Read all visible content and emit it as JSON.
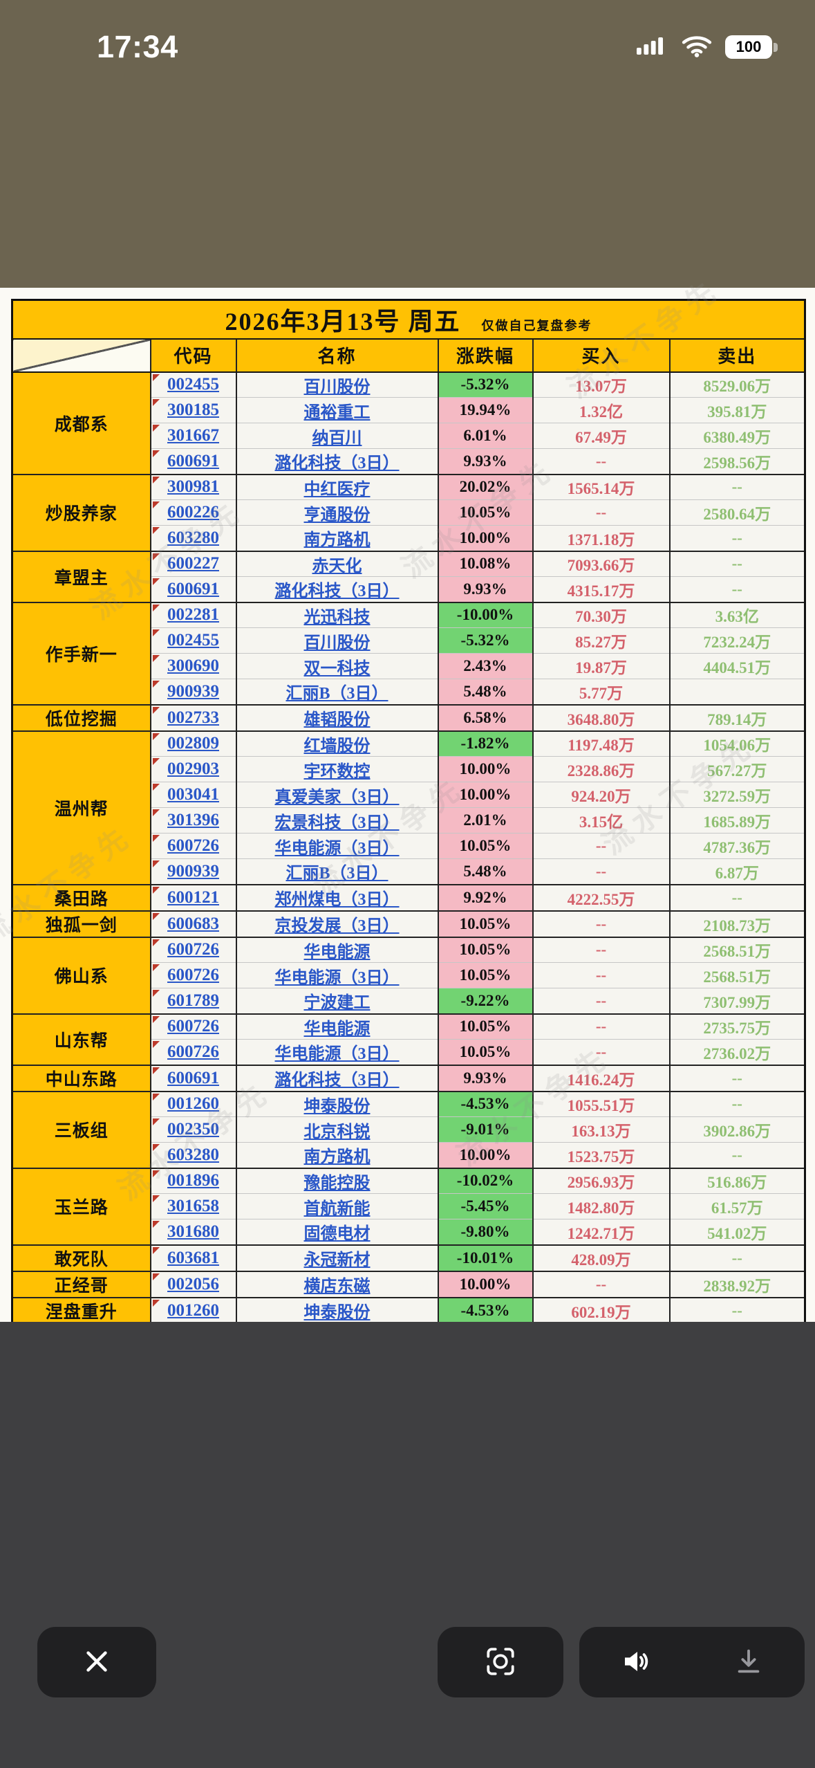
{
  "status_bar": {
    "time": "17:34",
    "battery": "100"
  },
  "watermark": {
    "text": "流水不争先"
  },
  "table": {
    "title": "2026年3月13号 周五",
    "subtitle": "仅做自己复盘参考",
    "headers": {
      "code": "代码",
      "name": "名称",
      "change": "涨跌幅",
      "buy": "买入",
      "sell": "卖出"
    },
    "groups": [
      {
        "name": "成都系",
        "rows": [
          {
            "code": "002455",
            "stock": "百川股份",
            "change": "-5.32%",
            "buy": "13.07万",
            "sell": "8529.06万"
          },
          {
            "code": "300185",
            "stock": "通裕重工",
            "change": "19.94%",
            "buy": "1.32亿",
            "sell": "395.81万"
          },
          {
            "code": "301667",
            "stock": "纳百川",
            "change": "6.01%",
            "buy": "67.49万",
            "sell": "6380.49万"
          },
          {
            "code": "600691",
            "stock": "潞化科技（3日）",
            "change": "9.93%",
            "buy": "--",
            "sell": "2598.56万"
          }
        ]
      },
      {
        "name": "炒股养家",
        "rows": [
          {
            "code": "300981",
            "stock": "中红医疗",
            "change": "20.02%",
            "buy": "1565.14万",
            "sell": "--"
          },
          {
            "code": "600226",
            "stock": "亨通股份",
            "change": "10.05%",
            "buy": "--",
            "sell": "2580.64万"
          },
          {
            "code": "603280",
            "stock": "南方路机",
            "change": "10.00%",
            "buy": "1371.18万",
            "sell": "--"
          }
        ]
      },
      {
        "name": "章盟主",
        "rows": [
          {
            "code": "600227",
            "stock": "赤天化",
            "change": "10.08%",
            "buy": "7093.66万",
            "sell": "--"
          },
          {
            "code": "600691",
            "stock": "潞化科技（3日）",
            "change": "9.93%",
            "buy": "4315.17万",
            "sell": "--"
          }
        ]
      },
      {
        "name": "作手新一",
        "rows": [
          {
            "code": "002281",
            "stock": "光迅科技",
            "change": "-10.00%",
            "buy": "70.30万",
            "sell": "3.63亿"
          },
          {
            "code": "002455",
            "stock": "百川股份",
            "change": "-5.32%",
            "buy": "85.27万",
            "sell": "7232.24万"
          },
          {
            "code": "300690",
            "stock": "双一科技",
            "change": "2.43%",
            "buy": "19.87万",
            "sell": "4404.51万"
          },
          {
            "code": "900939",
            "stock": "汇丽B（3日）",
            "change": "5.48%",
            "buy": "5.77万",
            "sell": ""
          }
        ]
      },
      {
        "name": "低位挖掘",
        "rows": [
          {
            "code": "002733",
            "stock": "雄韬股份",
            "change": "6.58%",
            "buy": "3648.80万",
            "sell": "789.14万"
          }
        ]
      },
      {
        "name": "温州帮",
        "rows": [
          {
            "code": "002809",
            "stock": "红墙股份",
            "change": "-1.82%",
            "buy": "1197.48万",
            "sell": "1054.06万"
          },
          {
            "code": "002903",
            "stock": "宇环数控",
            "change": "10.00%",
            "buy": "2328.86万",
            "sell": "567.27万"
          },
          {
            "code": "003041",
            "stock": "真爱美家（3日）",
            "change": "10.00%",
            "buy": "924.20万",
            "sell": "3272.59万"
          },
          {
            "code": "301396",
            "stock": "宏景科技（3日）",
            "change": "2.01%",
            "buy": "3.15亿",
            "sell": "1685.89万"
          },
          {
            "code": "600726",
            "stock": "华电能源（3日）",
            "change": "10.05%",
            "buy": "--",
            "sell": "4787.36万"
          },
          {
            "code": "900939",
            "stock": "汇丽B（3日）",
            "change": "5.48%",
            "buy": "--",
            "sell": "6.87万"
          }
        ]
      },
      {
        "name": "桑田路",
        "rows": [
          {
            "code": "600121",
            "stock": "郑州煤电（3日）",
            "change": "9.92%",
            "buy": "4222.55万",
            "sell": "--"
          }
        ]
      },
      {
        "name": "独孤一剑",
        "rows": [
          {
            "code": "600683",
            "stock": "京投发展（3日）",
            "change": "10.05%",
            "buy": "--",
            "sell": "2108.73万"
          }
        ]
      },
      {
        "name": "佛山系",
        "rows": [
          {
            "code": "600726",
            "stock": "华电能源",
            "change": "10.05%",
            "buy": "--",
            "sell": "2568.51万"
          },
          {
            "code": "600726",
            "stock": "华电能源（3日）",
            "change": "10.05%",
            "buy": "--",
            "sell": "2568.51万"
          },
          {
            "code": "601789",
            "stock": "宁波建工",
            "change": "-9.22%",
            "buy": "--",
            "sell": "7307.99万"
          }
        ]
      },
      {
        "name": "山东帮",
        "rows": [
          {
            "code": "600726",
            "stock": "华电能源",
            "change": "10.05%",
            "buy": "--",
            "sell": "2735.75万"
          },
          {
            "code": "600726",
            "stock": "华电能源（3日）",
            "change": "10.05%",
            "buy": "--",
            "sell": "2736.02万"
          }
        ]
      },
      {
        "name": "中山东路",
        "rows": [
          {
            "code": "600691",
            "stock": "潞化科技（3日）",
            "change": "9.93%",
            "buy": "1416.24万",
            "sell": "--"
          }
        ]
      },
      {
        "name": "三板组",
        "rows": [
          {
            "code": "001260",
            "stock": "坤泰股份",
            "change": "-4.53%",
            "buy": "1055.51万",
            "sell": "--"
          },
          {
            "code": "002350",
            "stock": "北京科锐",
            "change": "-9.01%",
            "buy": "163.13万",
            "sell": "3902.86万"
          },
          {
            "code": "603280",
            "stock": "南方路机",
            "change": "10.00%",
            "buy": "1523.75万",
            "sell": "--"
          }
        ]
      },
      {
        "name": "玉兰路",
        "rows": [
          {
            "code": "001896",
            "stock": "豫能控股",
            "change": "-10.02%",
            "buy": "2956.93万",
            "sell": "516.86万"
          },
          {
            "code": "301658",
            "stock": "首航新能",
            "change": "-5.45%",
            "buy": "1482.80万",
            "sell": "61.57万"
          },
          {
            "code": "301680",
            "stock": "固德电材",
            "change": "-9.80%",
            "buy": "1242.71万",
            "sell": "541.02万"
          }
        ]
      },
      {
        "name": "敢死队",
        "rows": [
          {
            "code": "603681",
            "stock": "永冠新材",
            "change": "-10.01%",
            "buy": "428.09万",
            "sell": "--"
          }
        ]
      },
      {
        "name": "正经哥",
        "rows": [
          {
            "code": "002056",
            "stock": "横店东磁",
            "change": "10.00%",
            "buy": "--",
            "sell": "2838.92万"
          }
        ]
      },
      {
        "name": "涅盘重升",
        "rows": [
          {
            "code": "001260",
            "stock": "坤泰股份",
            "change": "-4.53%",
            "buy": "602.19万",
            "sell": "--"
          }
        ]
      }
    ]
  },
  "icons": {
    "status": [
      "cellular-signal-icon",
      "wifi-icon",
      "battery-icon"
    ],
    "toolbar": [
      "close-icon",
      "image-search-lens-icon",
      "speaker-icon",
      "download-icon"
    ]
  },
  "colors": {
    "header_gold": "#ffc103",
    "change_up_bg": "#f5bac4",
    "change_down_bg": "#72d372",
    "link_blue": "#2a57c8",
    "buy_red": "#d4616b",
    "sell_green": "#8fbf72",
    "top_background": "#6c6450",
    "bottom_background": "#3f3f41"
  }
}
